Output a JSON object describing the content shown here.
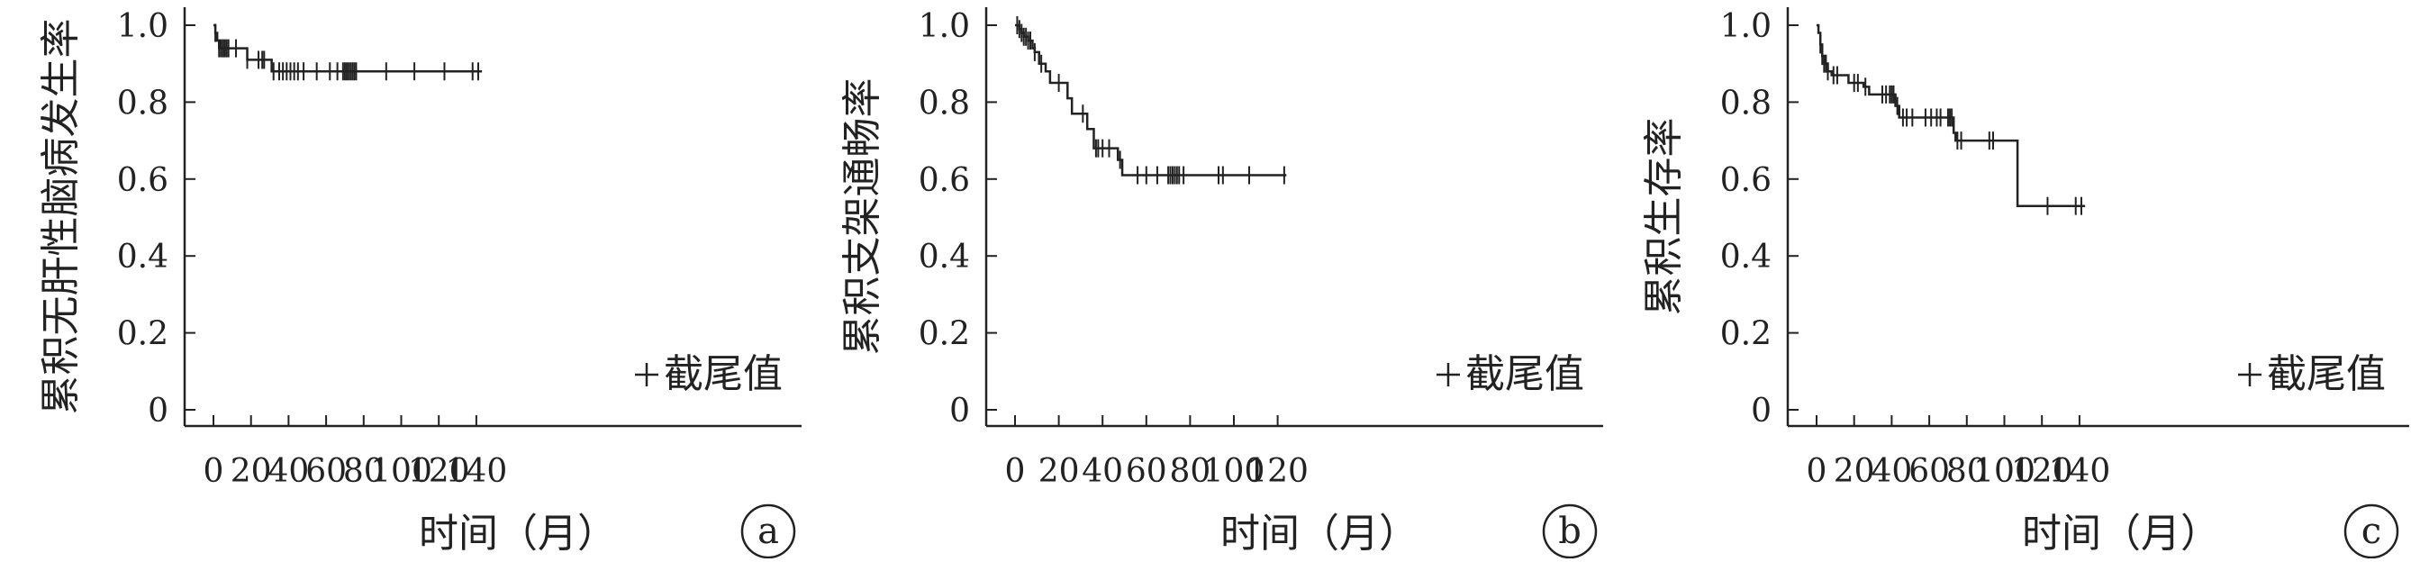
{
  "censor_legend": "截尾值",
  "chart_data": [
    {
      "type": "line",
      "panel_label": "a",
      "xlabel": "时间（月）",
      "ylabel": "累积无肝性脑病发生率",
      "xlim": [
        0,
        145
      ],
      "ylim": [
        0,
        1.0
      ],
      "xticks": [
        0,
        20,
        40,
        60,
        80,
        100,
        120,
        140
      ],
      "yticks": [
        0,
        0.2,
        0.4,
        0.6,
        0.8,
        1.0
      ],
      "ytick_labels": [
        "0",
        "0.2",
        "0.4",
        "0.6",
        "0.8",
        "1.0"
      ],
      "grid": false,
      "legend": "bottom-right",
      "steps": [
        [
          0,
          1.0
        ],
        [
          1,
          0.98
        ],
        [
          2,
          0.96
        ],
        [
          3,
          0.94
        ],
        [
          18,
          0.91
        ],
        [
          31,
          0.88
        ],
        [
          143,
          0.88
        ]
      ],
      "censored": [
        [
          1,
          0.98
        ],
        [
          3,
          0.94
        ],
        [
          4,
          0.94
        ],
        [
          5,
          0.94
        ],
        [
          6,
          0.94
        ],
        [
          7,
          0.94
        ],
        [
          8,
          0.94
        ],
        [
          12,
          0.94
        ],
        [
          18,
          0.91
        ],
        [
          24,
          0.91
        ],
        [
          26,
          0.91
        ],
        [
          27,
          0.91
        ],
        [
          32,
          0.88
        ],
        [
          35,
          0.88
        ],
        [
          37,
          0.88
        ],
        [
          39,
          0.88
        ],
        [
          41,
          0.88
        ],
        [
          43,
          0.88
        ],
        [
          45,
          0.88
        ],
        [
          48,
          0.88
        ],
        [
          55,
          0.88
        ],
        [
          62,
          0.88
        ],
        [
          66,
          0.88
        ],
        [
          69,
          0.88
        ],
        [
          70,
          0.88
        ],
        [
          71,
          0.88
        ],
        [
          72,
          0.88
        ],
        [
          73,
          0.88
        ],
        [
          74,
          0.88
        ],
        [
          75,
          0.88
        ],
        [
          76,
          0.88
        ],
        [
          92,
          0.88
        ],
        [
          107,
          0.88
        ],
        [
          123,
          0.88
        ],
        [
          138,
          0.88
        ],
        [
          141,
          0.88
        ]
      ]
    },
    {
      "type": "line",
      "panel_label": "b",
      "xlabel": "时间（月）",
      "ylabel": "累积支架通畅率",
      "xlim": [
        0,
        125
      ],
      "ylim": [
        0,
        1.0
      ],
      "xticks": [
        0,
        20,
        40,
        60,
        80,
        100,
        120
      ],
      "yticks": [
        0,
        0.2,
        0.4,
        0.6,
        0.8,
        1.0
      ],
      "ytick_labels": [
        "0",
        "0.2",
        "0.4",
        "0.6",
        "0.8",
        "1.0"
      ],
      "grid": false,
      "legend": "bottom-right",
      "steps": [
        [
          0,
          1.0
        ],
        [
          2,
          0.99
        ],
        [
          3,
          0.98
        ],
        [
          4,
          0.97
        ],
        [
          6,
          0.96
        ],
        [
          8,
          0.94
        ],
        [
          9,
          0.93
        ],
        [
          11,
          0.9
        ],
        [
          14,
          0.88
        ],
        [
          16,
          0.85
        ],
        [
          24,
          0.81
        ],
        [
          26,
          0.77
        ],
        [
          33,
          0.73
        ],
        [
          36,
          0.68
        ],
        [
          47,
          0.65
        ],
        [
          49,
          0.61
        ],
        [
          124,
          0.61
        ]
      ],
      "censored": [
        [
          1,
          1.0
        ],
        [
          2,
          0.99
        ],
        [
          3,
          0.98
        ],
        [
          4,
          0.97
        ],
        [
          5,
          0.97
        ],
        [
          6,
          0.96
        ],
        [
          7,
          0.96
        ],
        [
          9,
          0.93
        ],
        [
          12,
          0.9
        ],
        [
          20,
          0.85
        ],
        [
          31,
          0.77
        ],
        [
          37,
          0.68
        ],
        [
          38,
          0.68
        ],
        [
          40,
          0.68
        ],
        [
          43,
          0.68
        ],
        [
          48,
          0.65
        ],
        [
          56,
          0.61
        ],
        [
          60,
          0.61
        ],
        [
          65,
          0.61
        ],
        [
          70,
          0.61
        ],
        [
          71,
          0.61
        ],
        [
          72,
          0.61
        ],
        [
          73,
          0.61
        ],
        [
          74,
          0.61
        ],
        [
          75,
          0.61
        ],
        [
          77,
          0.61
        ],
        [
          93,
          0.61
        ],
        [
          95,
          0.61
        ],
        [
          107,
          0.61
        ],
        [
          123,
          0.61
        ]
      ]
    },
    {
      "type": "line",
      "panel_label": "c",
      "xlabel": "时间（月）",
      "ylabel": "累积生存率",
      "xlim": [
        0,
        145
      ],
      "ylim": [
        0,
        1.0
      ],
      "xticks": [
        0,
        20,
        40,
        60,
        80,
        100,
        120,
        140
      ],
      "yticks": [
        0,
        0.2,
        0.4,
        0.6,
        0.8,
        1.0
      ],
      "ytick_labels": [
        "0",
        "0.2",
        "0.4",
        "0.6",
        "0.8",
        "1.0"
      ],
      "grid": false,
      "legend": "bottom-right",
      "steps": [
        [
          0,
          1.0
        ],
        [
          1,
          0.98
        ],
        [
          2,
          0.95
        ],
        [
          3,
          0.92
        ],
        [
          4,
          0.9
        ],
        [
          6,
          0.88
        ],
        [
          8,
          0.87
        ],
        [
          17,
          0.85
        ],
        [
          25,
          0.84
        ],
        [
          28,
          0.82
        ],
        [
          42,
          0.79
        ],
        [
          44,
          0.76
        ],
        [
          73,
          0.72
        ],
        [
          74,
          0.7
        ],
        [
          107,
          0.53
        ],
        [
          143,
          0.53
        ]
      ],
      "censored": [
        [
          2,
          0.95
        ],
        [
          3,
          0.92
        ],
        [
          4,
          0.9
        ],
        [
          5,
          0.9
        ],
        [
          6,
          0.88
        ],
        [
          9,
          0.87
        ],
        [
          11,
          0.87
        ],
        [
          20,
          0.85
        ],
        [
          22,
          0.85
        ],
        [
          26,
          0.84
        ],
        [
          35,
          0.82
        ],
        [
          37,
          0.82
        ],
        [
          39,
          0.82
        ],
        [
          40,
          0.82
        ],
        [
          41,
          0.82
        ],
        [
          43,
          0.79
        ],
        [
          46,
          0.76
        ],
        [
          48,
          0.76
        ],
        [
          51,
          0.76
        ],
        [
          58,
          0.76
        ],
        [
          61,
          0.76
        ],
        [
          64,
          0.76
        ],
        [
          66,
          0.76
        ],
        [
          70,
          0.76
        ],
        [
          71,
          0.76
        ],
        [
          72,
          0.76
        ],
        [
          75,
          0.7
        ],
        [
          77,
          0.7
        ],
        [
          92,
          0.7
        ],
        [
          94,
          0.7
        ],
        [
          123,
          0.53
        ],
        [
          138,
          0.53
        ],
        [
          141,
          0.53
        ]
      ]
    }
  ]
}
